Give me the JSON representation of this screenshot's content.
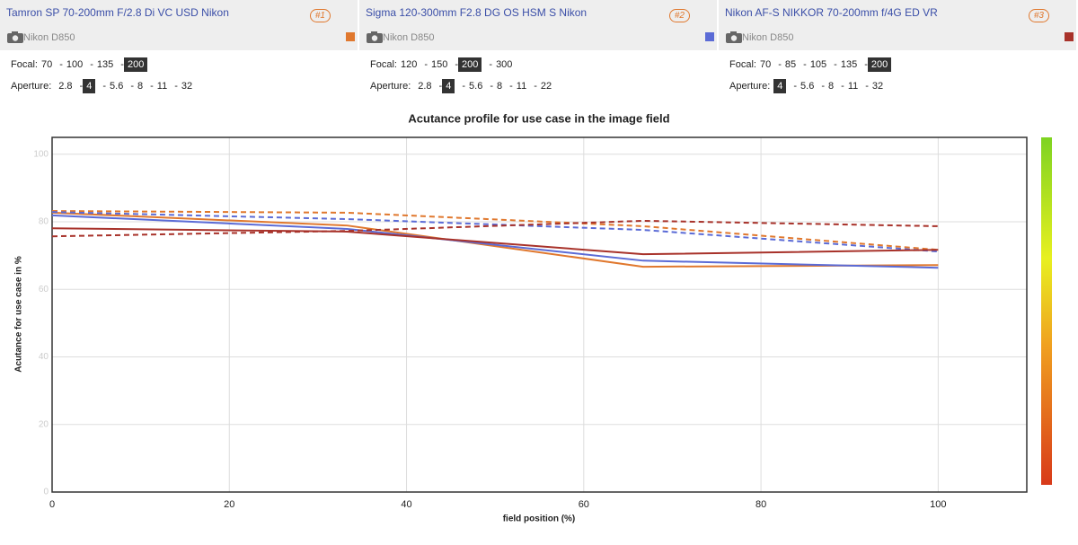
{
  "lenses": [
    {
      "lens": "Tamron SP 70-200mm F/2.8 Di VC USD Nikon",
      "rank": "#1",
      "camera": "Nikon D850",
      "color": "#e0782e",
      "focal_label": "Focal:",
      "focals": [
        "70",
        "100",
        "135",
        "200"
      ],
      "focal_selected": 3,
      "aperture_label": "Aperture:",
      "apertures": [
        "2.8",
        "4",
        "5.6",
        "8",
        "11",
        "32"
      ],
      "aperture_selected": 1
    },
    {
      "lens": "Sigma 120-300mm F2.8 DG OS HSM S Nikon",
      "rank": "#2",
      "camera": "Nikon D850",
      "color": "#5b6bd6",
      "focal_label": "Focal:",
      "focals": [
        "120",
        "150",
        "200",
        "300"
      ],
      "focal_selected": 2,
      "aperture_label": "Aperture:",
      "apertures": [
        "2.8",
        "4",
        "5.6",
        "8",
        "11",
        "22"
      ],
      "aperture_selected": 1
    },
    {
      "lens": "Nikon AF-S NIKKOR 70-200mm f/4G ED VR",
      "rank": "#3",
      "camera": "Nikon D850",
      "color": "#a8322a",
      "focal_label": "Focal:",
      "focals": [
        "70",
        "85",
        "105",
        "135",
        "200"
      ],
      "focal_selected": 4,
      "aperture_label": "Aperture:",
      "apertures": [
        "4",
        "5.6",
        "8",
        "11",
        "32"
      ],
      "aperture_selected": 0
    }
  ],
  "chart_data": {
    "type": "line",
    "title": "Acutance profile for use case in the image field",
    "x_label": "field position (%)",
    "y_label": "Acutance for use case in %",
    "x": [
      0,
      33.3,
      66.7,
      100
    ],
    "series": [
      {
        "color": "#e0782e",
        "style": "solid",
        "values": [
          82.7,
          78.9,
          66.7,
          67.2
        ]
      },
      {
        "color": "#e0782e",
        "style": "dashed",
        "values": [
          83.2,
          82.7,
          78.7,
          71.7
        ]
      },
      {
        "color": "#5b6bd6",
        "style": "solid",
        "values": [
          81.9,
          77.9,
          68.5,
          66.4
        ]
      },
      {
        "color": "#5b6bd6",
        "style": "dashed",
        "values": [
          82.9,
          80.8,
          77.6,
          71.2
        ]
      },
      {
        "color": "#a8322a",
        "style": "solid",
        "values": [
          78.1,
          77.1,
          70.4,
          71.7
        ]
      },
      {
        "color": "#a8322a",
        "style": "dashed",
        "values": [
          75.7,
          77.3,
          80.3,
          78.7
        ]
      }
    ],
    "xlim": [
      0,
      110
    ],
    "ylim": [
      0,
      105
    ],
    "xticks": [
      0,
      20,
      40,
      60,
      80,
      100
    ],
    "yticks": [
      0,
      20,
      40,
      60,
      80,
      100
    ],
    "grid": true
  }
}
